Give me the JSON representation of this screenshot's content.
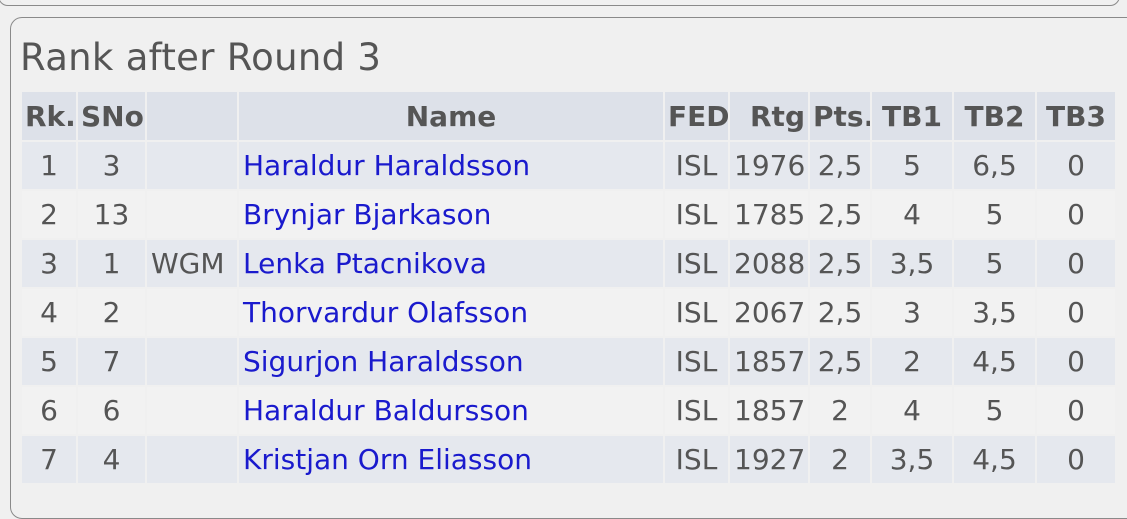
{
  "header": {
    "title": "Rank after Round 3"
  },
  "table": {
    "columns": [
      "Rk.",
      "SNo",
      null,
      "Name",
      "FED",
      "Rtg",
      "Pts.",
      "TB1",
      "TB2",
      "TB3"
    ],
    "rows": [
      [
        "1",
        "3",
        null,
        "Haraldur Haraldsson",
        "ISL",
        "1976",
        "2,5",
        "5",
        "6,5",
        "0"
      ],
      [
        "2",
        "13",
        null,
        "Brynjar Bjarkason",
        "ISL",
        "1785",
        "2,5",
        "4",
        "5",
        "0"
      ],
      [
        "3",
        "1",
        "WGM",
        "Lenka Ptacnikova",
        "ISL",
        "2088",
        "2,5",
        "3,5",
        "5",
        "0"
      ],
      [
        "4",
        "2",
        null,
        "Thorvardur Olafsson",
        "ISL",
        "2067",
        "2,5",
        "3",
        "3,5",
        "0"
      ],
      [
        "5",
        "7",
        null,
        "Sigurjon Haraldsson",
        "ISL",
        "1857",
        "2,5",
        "2",
        "4,5",
        "0"
      ],
      [
        "6",
        "6",
        null,
        "Haraldur Baldursson",
        "ISL",
        "1857",
        "2",
        "4",
        "5",
        "0"
      ],
      [
        "7",
        "4",
        null,
        "Kristjan Orn Eliasson",
        "ISL",
        "1927",
        "2",
        "3,5",
        "4,5",
        "0"
      ]
    ]
  }
}
